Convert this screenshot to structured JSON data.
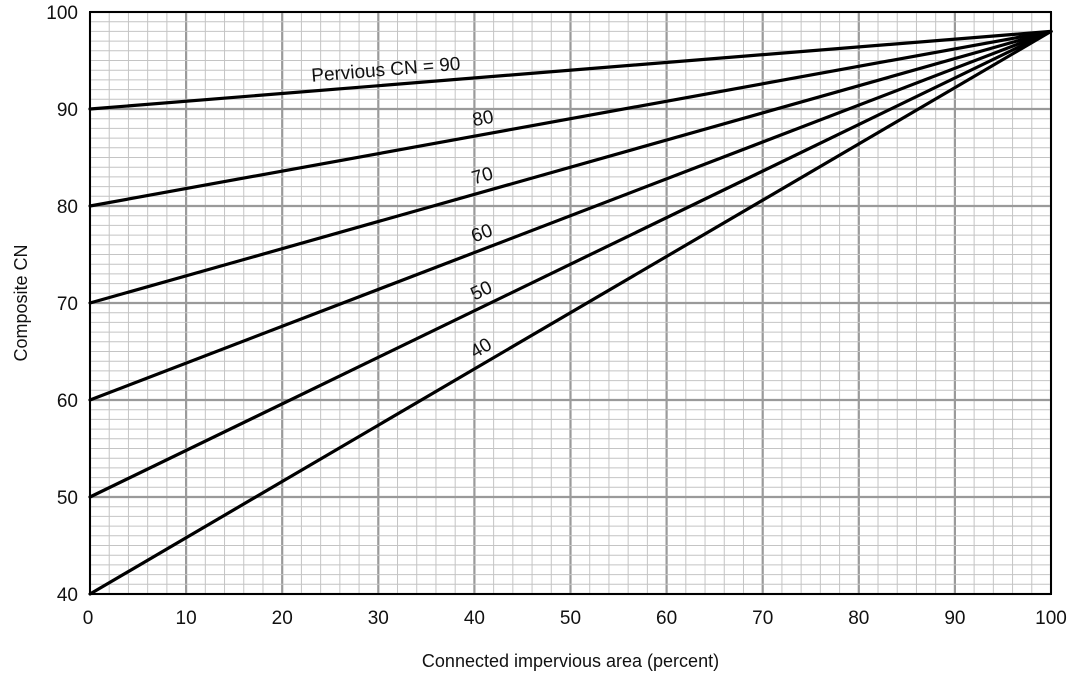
{
  "chart_data": {
    "type": "line",
    "xlabel": "Connected impervious area (percent)",
    "ylabel": "Composite CN",
    "xlim": [
      0,
      100
    ],
    "ylim": [
      40,
      100
    ],
    "grid": true,
    "x_ticks": [
      "0",
      "10",
      "20",
      "30",
      "40",
      "50",
      "60",
      "70",
      "80",
      "90",
      "100"
    ],
    "y_ticks": [
      "40",
      "50",
      "60",
      "70",
      "80",
      "90",
      "100"
    ],
    "series": [
      {
        "name": "Pervious CN =  90",
        "x": [
          0,
          100
        ],
        "y": [
          90,
          98
        ]
      },
      {
        "name": "80",
        "x": [
          0,
          100
        ],
        "y": [
          80,
          98
        ]
      },
      {
        "name": "70",
        "x": [
          0,
          100
        ],
        "y": [
          70,
          98
        ]
      },
      {
        "name": "60",
        "x": [
          0,
          100
        ],
        "y": [
          60,
          98
        ]
      },
      {
        "name": "50",
        "x": [
          0,
          100
        ],
        "y": [
          50,
          98
        ]
      },
      {
        "name": "40",
        "x": [
          0,
          100
        ],
        "y": [
          40,
          98
        ]
      }
    ]
  }
}
